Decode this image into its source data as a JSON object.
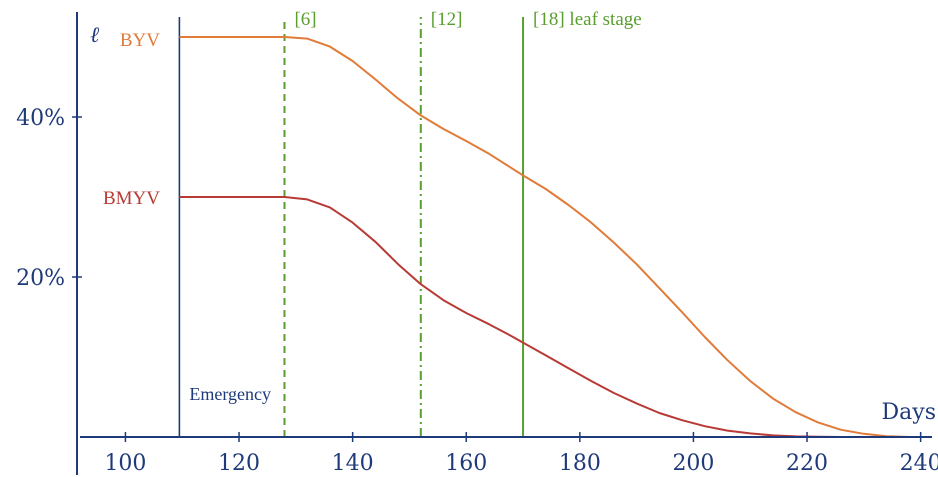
{
  "chart_data": {
    "type": "line",
    "title": "",
    "ylabel": "ℓ",
    "xlabel": "Days",
    "xlim": [
      92,
      242
    ],
    "ylim": [
      0,
      54
    ],
    "x_ticks": [
      100,
      120,
      140,
      160,
      180,
      200,
      220,
      240
    ],
    "y_ticks": [
      {
        "value": 20,
        "label": "20%"
      },
      {
        "value": 40,
        "label": "40%"
      }
    ],
    "series": [
      {
        "name": "BYV",
        "color": "#e07b39",
        "x": [
          109.5,
          128,
          132,
          136,
          140,
          144,
          148,
          152,
          156,
          160,
          164,
          168,
          170,
          174,
          178,
          182,
          186,
          190,
          194,
          198,
          202,
          206,
          210,
          214,
          218,
          222,
          226,
          230,
          234,
          238,
          240
        ],
        "y": [
          50,
          50,
          49.8,
          48.8,
          47,
          44.7,
          42.3,
          40.2,
          38.5,
          37,
          35.4,
          33.6,
          32.7,
          31,
          29,
          26.8,
          24.3,
          21.6,
          18.6,
          15.6,
          12.5,
          9.6,
          7,
          4.8,
          3.1,
          1.8,
          0.9,
          0.4,
          0.1,
          0,
          0
        ]
      },
      {
        "name": "BMYV",
        "color": "#b83a35",
        "x": [
          109.5,
          128,
          132,
          136,
          140,
          144,
          148,
          152,
          156,
          160,
          164,
          168,
          170,
          174,
          178,
          182,
          186,
          190,
          194,
          198,
          202,
          206,
          210,
          214,
          218,
          222,
          226,
          230,
          234,
          238,
          240
        ],
        "y": [
          30,
          30,
          29.7,
          28.7,
          26.8,
          24.4,
          21.6,
          19.1,
          17.1,
          15.5,
          14.1,
          12.6,
          11.8,
          10.2,
          8.6,
          7,
          5.5,
          4.2,
          3,
          2.1,
          1.35,
          0.8,
          0.45,
          0.2,
          0.08,
          0.02,
          0,
          0,
          0,
          0,
          0
        ]
      }
    ],
    "vertical_markers": [
      {
        "x": 109.5,
        "label": "Emergency",
        "style": "solid",
        "color": "#1f3a7a"
      },
      {
        "x": 128,
        "label": "[6]",
        "style": "dashed",
        "color": "#5a9e2f"
      },
      {
        "x": 152,
        "label": "[12]",
        "style": "dashdot",
        "color": "#5a9e2f"
      },
      {
        "x": 170,
        "label": "[18] leaf stage",
        "style": "solid",
        "color": "#5a9e2f"
      }
    ],
    "colors": {
      "axis": "#1f3a7a",
      "BYV": "#e07b39",
      "BMYV": "#b83a35",
      "marker": "#5a9e2f"
    }
  }
}
